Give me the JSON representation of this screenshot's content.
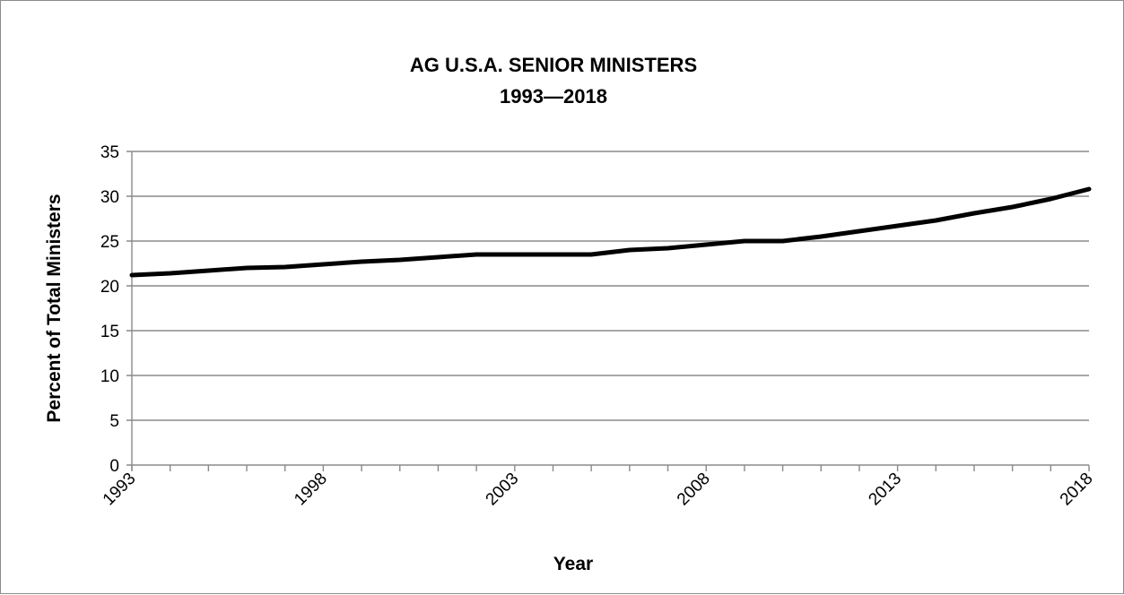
{
  "chart_data": {
    "type": "line",
    "title_line1": "AG U.S.A. SENIOR MINISTERS",
    "title_line2": "1993—2018",
    "xlabel": "Year",
    "ylabel": "Percent of Total Ministers",
    "x": [
      1993,
      1994,
      1995,
      1996,
      1997,
      1998,
      1999,
      2000,
      2001,
      2002,
      2003,
      2004,
      2005,
      2006,
      2007,
      2008,
      2009,
      2010,
      2011,
      2012,
      2013,
      2014,
      2015,
      2016,
      2017,
      2018
    ],
    "series": [
      {
        "values": [
          21.2,
          21.4,
          21.7,
          22.0,
          22.1,
          22.4,
          22.7,
          22.9,
          23.2,
          23.5,
          23.5,
          23.5,
          23.5,
          24.0,
          24.2,
          24.6,
          25.0,
          25.0,
          25.5,
          26.1,
          26.7,
          27.3,
          28.1,
          28.8,
          29.7,
          30.8
        ],
        "color": "#000000"
      }
    ],
    "xtick_labels": [
      "1993",
      "1998",
      "2003",
      "2008",
      "2013",
      "2018"
    ],
    "ytick_labels": [
      "0",
      "5",
      "10",
      "15",
      "20",
      "25",
      "30",
      "35"
    ],
    "xlim": [
      1993,
      2018
    ],
    "ylim": [
      0,
      35
    ],
    "grid": "horizontal"
  }
}
